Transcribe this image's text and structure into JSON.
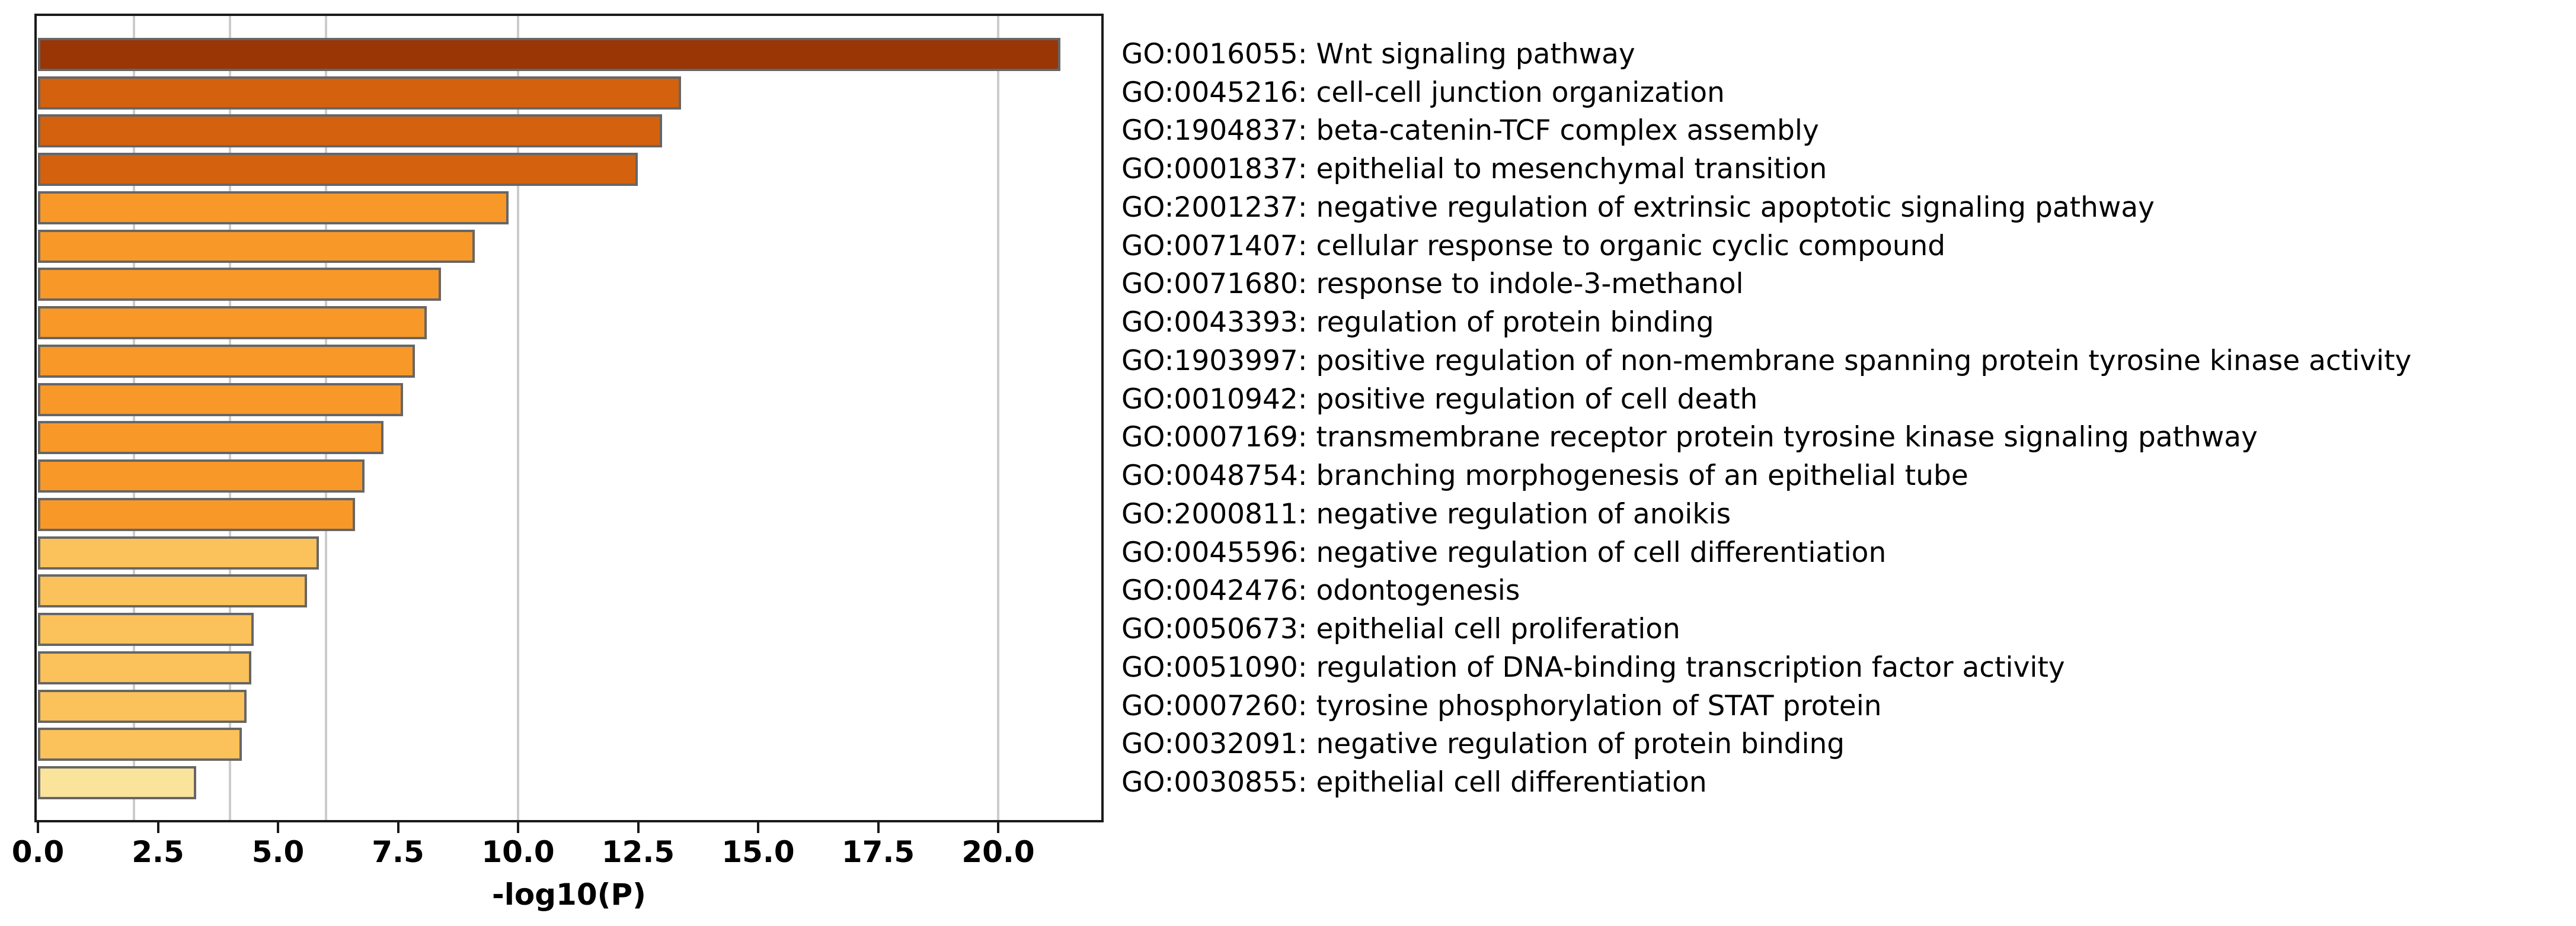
{
  "chart_data": {
    "type": "bar",
    "orientation": "horizontal",
    "title": "",
    "xlabel": "-log10(P)",
    "ylabel": "",
    "xlim": [
      0,
      22.2
    ],
    "x_tick_values": [
      0,
      2.5,
      5,
      7.5,
      10,
      12.5,
      15,
      17.5,
      20
    ],
    "x_tick_labels": [
      "0.0",
      "2.5",
      "5.0",
      "7.5",
      "10.0",
      "12.5",
      "15.0",
      "17.5",
      "20.0"
    ],
    "gridline_values": [
      2,
      4,
      6,
      10,
      20
    ],
    "grid_on": true,
    "legend_position": "none",
    "colors": {
      "background": "#ffffff",
      "grid": "#cccccc",
      "bar_edge": "#666666",
      "axis": "#1a1a1a",
      "text": "#000000",
      "bin_over_20": "#9a3506",
      "bin_10_20": "#d4610e",
      "bin_6_10": "#f89828",
      "bin_4_6": "#fbc15a",
      "bin_3_4": "#fae49b"
    },
    "bars": [
      {
        "label": "GO:0016055: Wnt signaling pathway",
        "value": 21.2,
        "color": "#9a3506"
      },
      {
        "label": "GO:0045216: cell-cell junction organization",
        "value": 13.3,
        "color": "#d4610e"
      },
      {
        "label": "GO:1904837: beta-catenin-TCF complex assembly",
        "value": 12.9,
        "color": "#d4610e"
      },
      {
        "label": "GO:0001837: epithelial to mesenchymal transition",
        "value": 12.4,
        "color": "#d4610e"
      },
      {
        "label": "GO:2001237: negative regulation of extrinsic apoptotic signaling pathway",
        "value": 9.7,
        "color": "#f89828"
      },
      {
        "label": "GO:0071407: cellular response to organic cyclic compound",
        "value": 9.0,
        "color": "#f89828"
      },
      {
        "label": "GO:0071680: response to indole-3-methanol",
        "value": 8.3,
        "color": "#f89828"
      },
      {
        "label": "GO:0043393: regulation of protein binding",
        "value": 8.0,
        "color": "#f89828"
      },
      {
        "label": "GO:1903997: positive regulation of non-membrane spanning protein tyrosine kinase activity",
        "value": 7.75,
        "color": "#f89828"
      },
      {
        "label": "GO:0010942: positive regulation of cell death",
        "value": 7.5,
        "color": "#f89828"
      },
      {
        "label": "GO:0007169: transmembrane receptor protein tyrosine kinase signaling pathway",
        "value": 7.1,
        "color": "#f89828"
      },
      {
        "label": "GO:0048754: branching morphogenesis of an epithelial tube",
        "value": 6.7,
        "color": "#f89828"
      },
      {
        "label": "GO:2000811: negative regulation of anoikis",
        "value": 6.5,
        "color": "#f89828"
      },
      {
        "label": "GO:0045596: negative regulation of cell differentiation",
        "value": 5.75,
        "color": "#fbc15a"
      },
      {
        "label": "GO:0042476: odontogenesis",
        "value": 5.5,
        "color": "#fbc15a"
      },
      {
        "label": "GO:0050673: epithelial cell proliferation",
        "value": 4.4,
        "color": "#fbc15a"
      },
      {
        "label": "GO:0051090: regulation of DNA-binding transcription factor activity",
        "value": 4.35,
        "color": "#fbc15a"
      },
      {
        "label": "GO:0007260: tyrosine phosphorylation of STAT protein",
        "value": 4.25,
        "color": "#fbc15a"
      },
      {
        "label": "GO:0032091: negative regulation of protein binding",
        "value": 4.15,
        "color": "#fbc15a"
      },
      {
        "label": "GO:0030855: epithelial cell differentiation",
        "value": 3.2,
        "color": "#fae49b"
      }
    ]
  }
}
